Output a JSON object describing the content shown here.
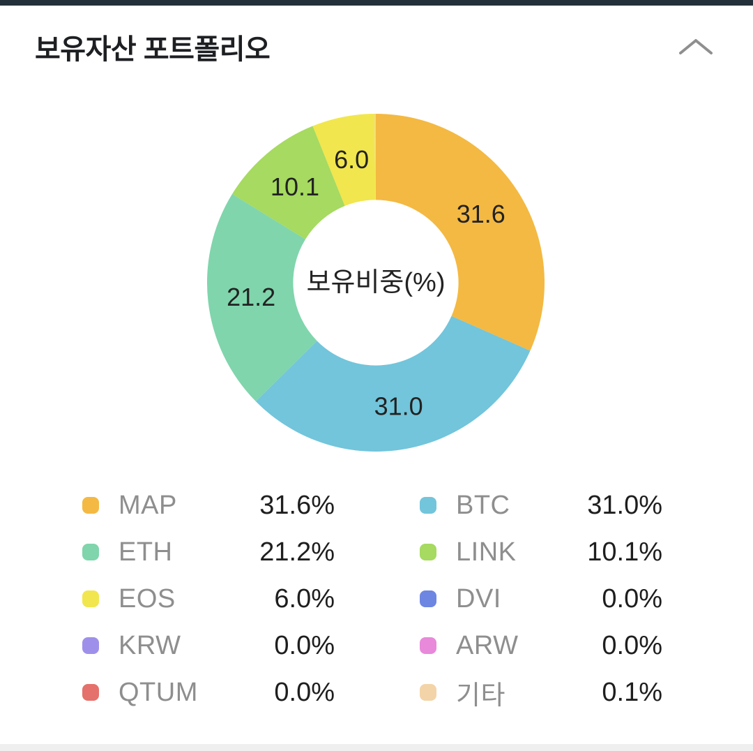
{
  "header": {
    "title": "보유자산 포트폴리오",
    "collapse_icon": "chevron-up",
    "collapse_icon_color": "#8f8f8f"
  },
  "chart_data": {
    "type": "pie",
    "subtype": "donut",
    "title": "보유자산 포트폴리오",
    "center_label": "보유비중(%)",
    "unit": "%",
    "start_angle_deg": 0,
    "direction": "clockwise",
    "inner_radius_ratio": 0.49,
    "slice_label_min_value": 5,
    "legend_position": "bottom-two-columns",
    "series": [
      {
        "label": "MAP",
        "value": 31.6,
        "display": "31.6%",
        "color": "#f4b942"
      },
      {
        "label": "BTC",
        "value": 31.0,
        "display": "31.0%",
        "color": "#72c5db"
      },
      {
        "label": "ETH",
        "value": 21.2,
        "display": "21.2%",
        "color": "#80d5ac"
      },
      {
        "label": "LINK",
        "value": 10.1,
        "display": "10.1%",
        "color": "#a6da60"
      },
      {
        "label": "EOS",
        "value": 6.0,
        "display": "6.0%",
        "color": "#f1e64d"
      },
      {
        "label": "DVI",
        "value": 0.0,
        "display": "0.0%",
        "color": "#6d86e2"
      },
      {
        "label": "KRW",
        "value": 0.0,
        "display": "0.0%",
        "color": "#9e90ea"
      },
      {
        "label": "ARW",
        "value": 0.0,
        "display": "0.0%",
        "color": "#e989da"
      },
      {
        "label": "QTUM",
        "value": 0.0,
        "display": "0.0%",
        "color": "#e5716c"
      },
      {
        "label": "기타",
        "value": 0.1,
        "display": "0.1%",
        "color": "#f3d4a8"
      }
    ],
    "slice_labels_shown": [
      "31.6",
      "31.0",
      "21.2",
      "10.1",
      "6.0"
    ]
  },
  "colors": {
    "top_strip": "#233039",
    "bottom_strip": "#efefef",
    "title_text": "#1d1f22",
    "legend_label_text": "#8e8e8e",
    "legend_value_text": "#1e1e1e",
    "slice_label_text": "#222222"
  }
}
